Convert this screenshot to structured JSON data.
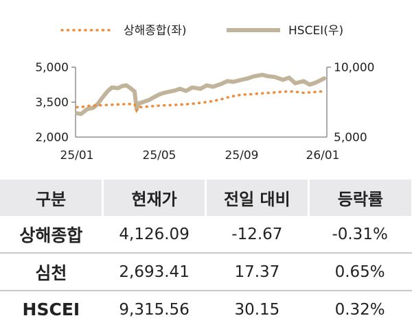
{
  "chart_data": {
    "type": "line",
    "legend": {
      "placement": "top",
      "entries": [
        "상해종합(좌)",
        "HSCEI(우)"
      ]
    },
    "x_tick_labels": [
      "25/01",
      "25/05",
      "25/09",
      "26/01"
    ],
    "y_left": {
      "ticks": [
        "5,000",
        "3,500",
        "2,000"
      ],
      "range": [
        2000,
        5000
      ]
    },
    "y_right": {
      "ticks": [
        "10,000",
        "5,000"
      ],
      "range": [
        5000,
        10000
      ]
    },
    "series": [
      {
        "name": "상해종합(좌)",
        "axis": "left",
        "style": "dotted",
        "color": "#ef8a36",
        "x": [
          0,
          0.3,
          0.6,
          1.0,
          1.5,
          2.0,
          2.5,
          2.8,
          2.9,
          3.0,
          3.3,
          3.7,
          4.0,
          4.5,
          5.0,
          5.5,
          6.0,
          6.5,
          7.0,
          7.3,
          7.6,
          8.0,
          8.5,
          9.0,
          9.5,
          10.0,
          10.5,
          11.0,
          11.5,
          12.0
        ],
        "values": [
          3280,
          3300,
          3340,
          3360,
          3380,
          3400,
          3420,
          3410,
          3145,
          3280,
          3300,
          3330,
          3350,
          3370,
          3390,
          3420,
          3470,
          3530,
          3620,
          3700,
          3760,
          3820,
          3840,
          3880,
          3910,
          3950,
          3960,
          3900,
          3930,
          3968
        ]
      },
      {
        "name": "HSCEI(우)",
        "axis": "right",
        "style": "solid",
        "color": "#c2b49a",
        "x": [
          0,
          0.2,
          0.5,
          0.8,
          1.0,
          1.2,
          1.5,
          1.7,
          2.0,
          2.2,
          2.4,
          2.6,
          2.8,
          2.9,
          3.0,
          3.2,
          3.5,
          3.8,
          4.0,
          4.2,
          4.5,
          4.8,
          5.0,
          5.3,
          5.6,
          6.0,
          6.3,
          6.6,
          7.0,
          7.3,
          7.6,
          8.0,
          8.3,
          8.6,
          9.0,
          9.3,
          9.6,
          10.0,
          10.3,
          10.6,
          11.0,
          11.3,
          11.6,
          11.8,
          12.0
        ],
        "values": [
          6700,
          6650,
          7000,
          7100,
          7350,
          7750,
          8300,
          8550,
          8500,
          8650,
          8700,
          8500,
          8250,
          7000,
          7400,
          7500,
          7650,
          7900,
          8050,
          8150,
          8250,
          8350,
          8450,
          8300,
          8550,
          8450,
          8700,
          8600,
          8800,
          9000,
          8950,
          9100,
          9200,
          9350,
          9450,
          9350,
          9300,
          9100,
          9250,
          8850,
          9000,
          8750,
          8900,
          9050,
          9200
        ]
      }
    ]
  },
  "table": {
    "headers": [
      "구분",
      "현재가",
      "전일 대비",
      "등락률"
    ],
    "rows": [
      {
        "label": "상해종합",
        "price": "4,126.09",
        "change": "-12.67",
        "rate": "-0.31%"
      },
      {
        "label": "심천",
        "price": "2,693.41",
        "change": "17.37",
        "rate": "0.65%"
      },
      {
        "label": "HSCEI",
        "price": "9,315.56",
        "change": "30.15",
        "rate": "0.32%"
      }
    ]
  },
  "colors": {
    "header_bg": "#e9e8ea",
    "row_divider": "#c9c9cc",
    "axis": "#8f8f94"
  }
}
